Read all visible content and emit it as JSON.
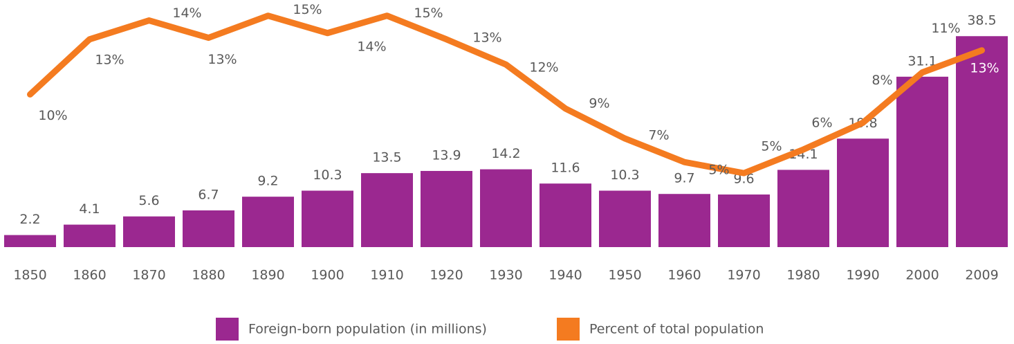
{
  "chart_data": {
    "type": "bar+line",
    "categories": [
      "1850",
      "1860",
      "1870",
      "1880",
      "1890",
      "1900",
      "1910",
      "1920",
      "1930",
      "1940",
      "1950",
      "1960",
      "1970",
      "1980",
      "1990",
      "2000",
      "2009"
    ],
    "series": [
      {
        "name": "Foreign-born population (in millions)",
        "type": "bar",
        "color": "#9b2890",
        "axis": "y",
        "values": [
          2.2,
          4.1,
          5.6,
          6.7,
          9.2,
          10.3,
          13.5,
          13.9,
          14.2,
          11.6,
          10.3,
          9.7,
          9.6,
          14.1,
          19.8,
          31.1,
          38.5
        ]
      },
      {
        "name": "Percent of total population",
        "type": "line",
        "color": "#f47b20",
        "axis": "y2",
        "values": [
          9.7,
          13.2,
          14.4,
          13.3,
          14.7,
          13.6,
          14.7,
          13.2,
          11.6,
          8.8,
          6.9,
          5.4,
          4.7,
          6.2,
          7.9,
          11.1,
          12.5
        ],
        "value_labels": [
          "10%",
          "13%",
          "14%",
          "13%",
          "15%",
          "14%",
          "15%",
          "13%",
          "12%",
          "9%",
          "7%",
          "5%",
          "5%",
          "6%",
          "8%",
          "11%",
          "13%"
        ]
      }
    ],
    "ylim": [
      0,
      45.1
    ],
    "y2lim": [
      0,
      15.7
    ],
    "legend": "bottom"
  }
}
